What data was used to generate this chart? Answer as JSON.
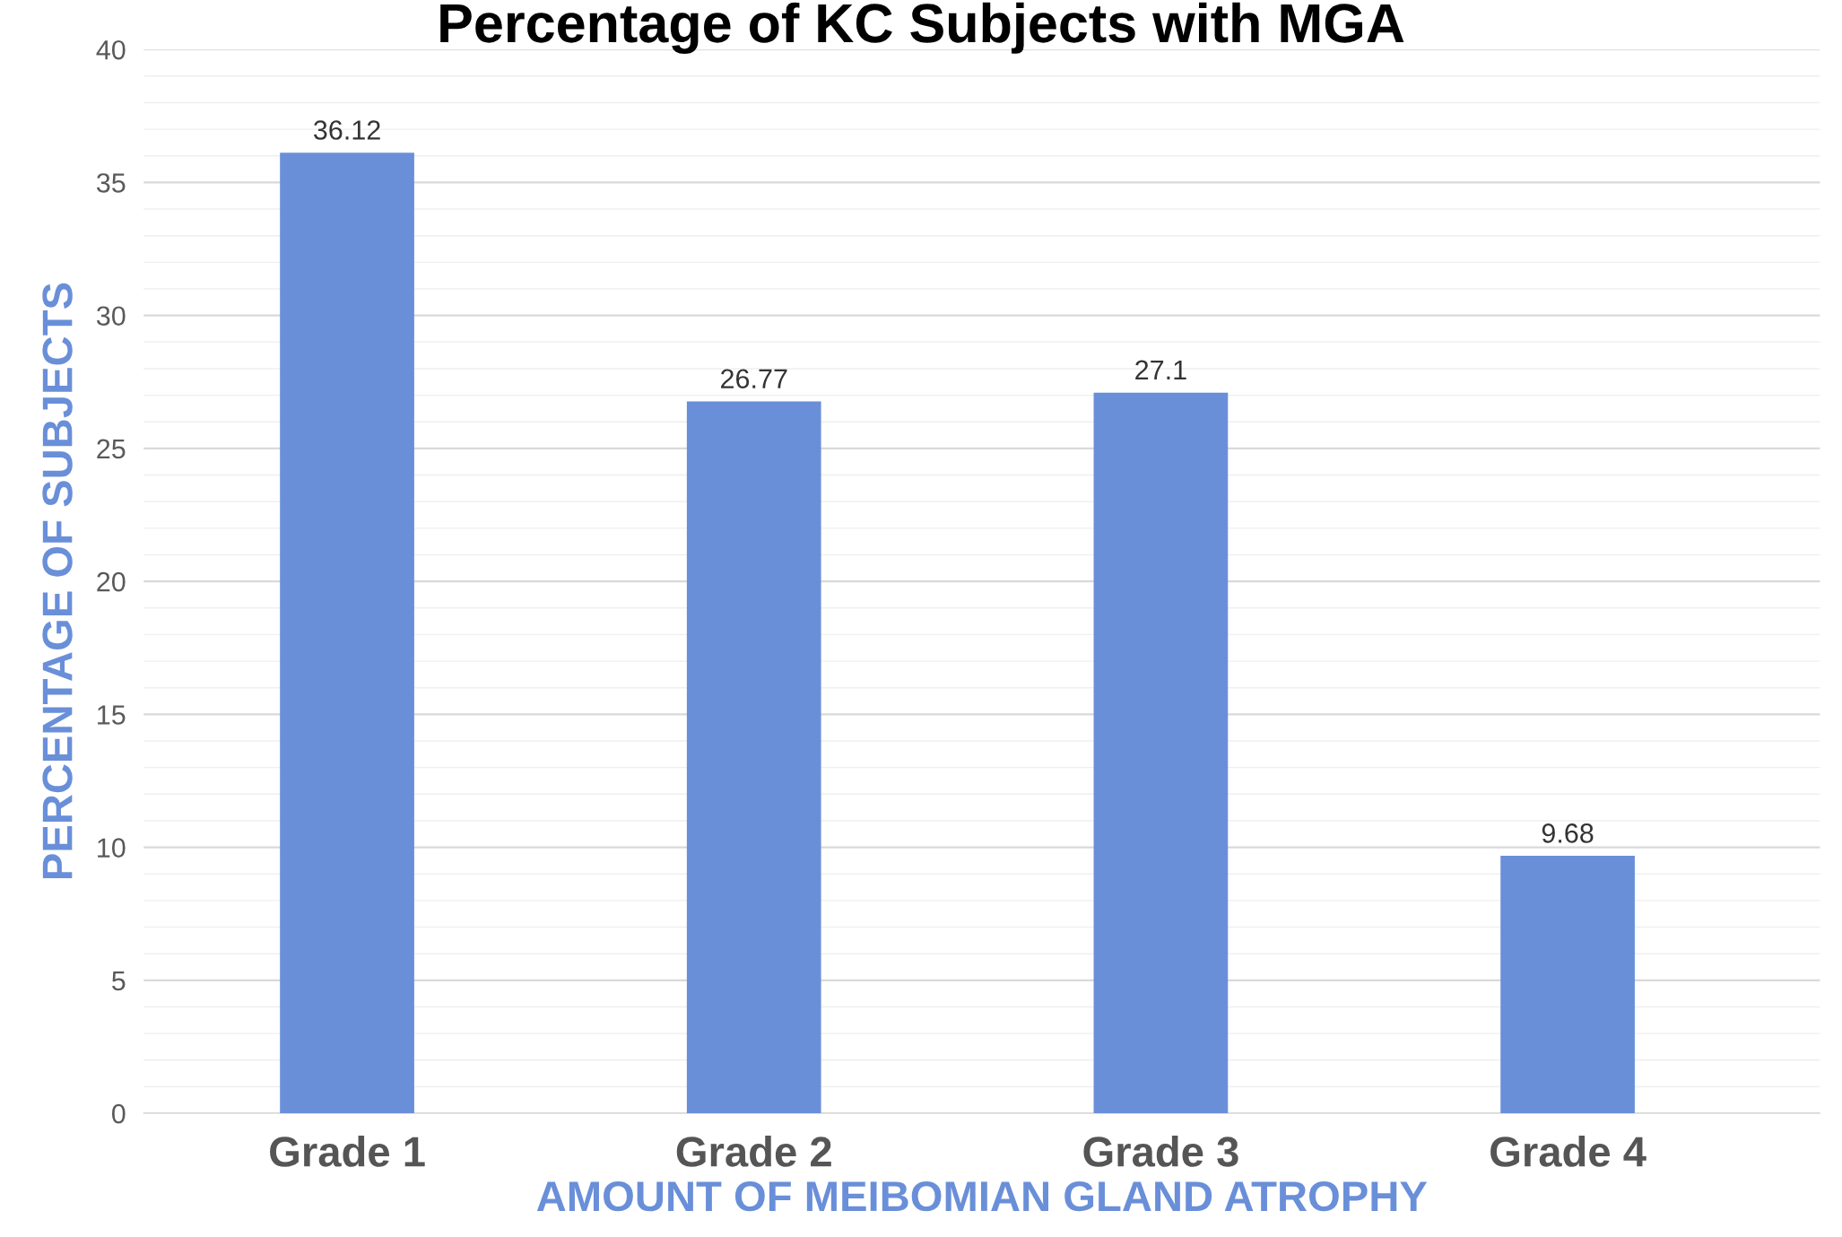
{
  "chart_data": {
    "type": "bar",
    "title": "Percentage of KC Subjects with MGA",
    "xlabel": "AMOUNT OF MEIBOMIAN GLAND ATROPHY",
    "ylabel": "PERCENTAGE OF SUBJECTS",
    "categories": [
      "Grade 1",
      "Grade 2",
      "Grade 3",
      "Grade 4"
    ],
    "values": [
      36.12,
      26.77,
      27.1,
      9.68
    ],
    "color": "#6a8fd9",
    "data_labels": true,
    "grid": "y",
    "ylim": [
      0,
      40
    ],
    "yticks": [
      0,
      {
        "value": 1,
        "label": null
      },
      {
        "value": 2,
        "label": null
      },
      {
        "value": 3,
        "label": null
      },
      {
        "value": 4,
        "label": null
      },
      5,
      {
        "value": 6,
        "label": null
      },
      {
        "value": 7,
        "label": null
      },
      {
        "value": 8,
        "label": null
      },
      {
        "value": 9,
        "label": null
      },
      10,
      {
        "value": 11,
        "label": null
      },
      {
        "value": 12,
        "label": null
      },
      {
        "value": 13,
        "label": null
      },
      {
        "value": 14,
        "label": null
      },
      15,
      {
        "value": 16,
        "label": null
      },
      {
        "value": 17,
        "label": null
      },
      {
        "value": 18,
        "label": null
      },
      {
        "value": 19,
        "label": null
      },
      20,
      {
        "value": 21,
        "label": null
      },
      {
        "value": 22,
        "label": null
      },
      {
        "value": 23,
        "label": null
      },
      {
        "value": 24,
        "label": null
      },
      25,
      {
        "value": 26,
        "label": null
      },
      {
        "value": 27,
        "label": null
      },
      {
        "value": 28,
        "label": null
      },
      {
        "value": 29,
        "label": null
      },
      30,
      {
        "value": 31,
        "label": null
      },
      {
        "value": 32,
        "label": null
      },
      {
        "value": 33,
        "label": null
      },
      {
        "value": 34,
        "label": null
      },
      35,
      {
        "value": 36,
        "label": null
      },
      {
        "value": 37,
        "label": null
      },
      {
        "value": 38,
        "label": null
      },
      {
        "value": 39,
        "label": null
      },
      40
    ]
  }
}
